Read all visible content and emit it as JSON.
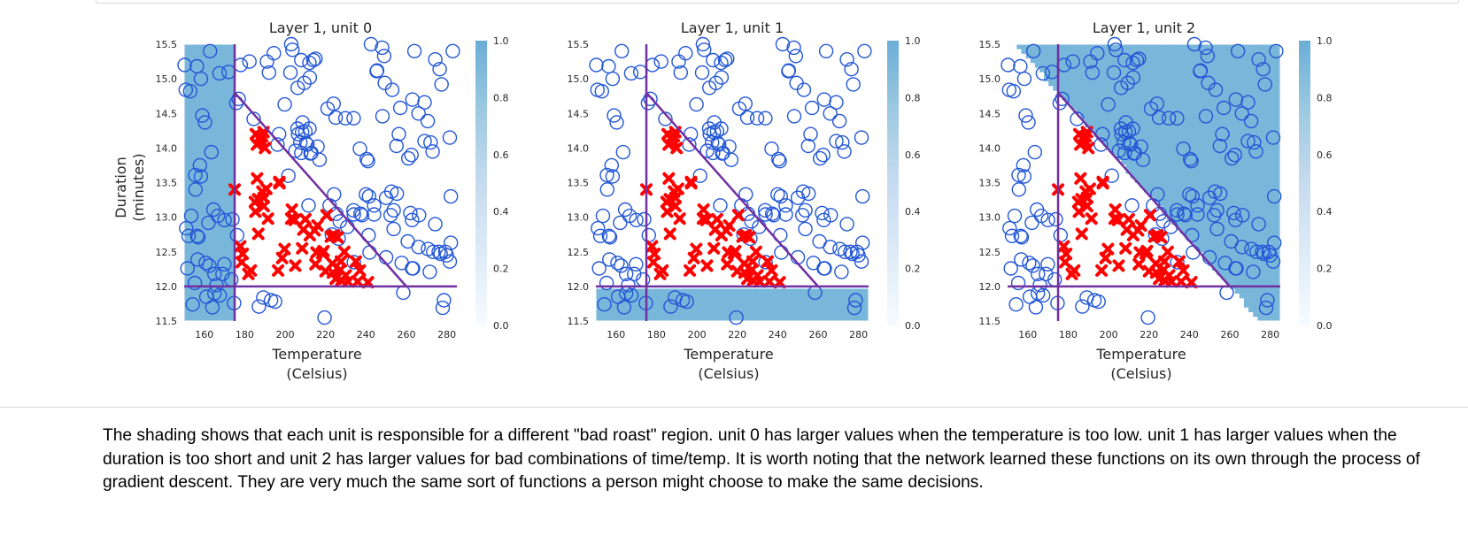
{
  "chart_data": [
    {
      "type": "heatmap",
      "title": "Layer 1, unit 0",
      "xlabel": [
        "Temperature",
        "(Celsius)"
      ],
      "ylabel": [
        "Duration",
        "(minutes)"
      ],
      "xlim": [
        150,
        285
      ],
      "ylim": [
        11.5,
        15.5
      ],
      "xticks": [
        160,
        180,
        200,
        220,
        240,
        260,
        280
      ],
      "yticks": [
        "11.5",
        "12.0",
        "12.5",
        "13.0",
        "13.5",
        "14.0",
        "14.5",
        "15.0",
        "15.5"
      ],
      "colorbar": {
        "range": [
          0,
          1
        ],
        "ticks": [
          "0.0",
          "0.2",
          "0.4",
          "0.6",
          "0.8",
          "1.0"
        ]
      },
      "shading": "high where temperature < 175",
      "grid": false
    },
    {
      "type": "heatmap",
      "title": "Layer 1, unit 1",
      "xlabel": [
        "Temperature",
        "(Celsius)"
      ],
      "ylabel": [],
      "xlim": [
        150,
        285
      ],
      "ylim": [
        11.5,
        15.5
      ],
      "xticks": [
        160,
        180,
        200,
        220,
        240,
        260,
        280
      ],
      "yticks": [
        "11.5",
        "12.0",
        "12.5",
        "13.0",
        "13.5",
        "14.0",
        "14.5",
        "15.0",
        "15.5"
      ],
      "colorbar": {
        "range": [
          0,
          1
        ],
        "ticks": [
          "0.0",
          "0.2",
          "0.4",
          "0.6",
          "0.8",
          "1.0"
        ]
      },
      "shading": "high where duration < 12",
      "grid": false
    },
    {
      "type": "heatmap",
      "title": "Layer 1, unit 2",
      "xlabel": [
        "Temperature",
        "(Celsius)"
      ],
      "ylabel": [],
      "xlim": [
        150,
        285
      ],
      "ylim": [
        11.5,
        15.5
      ],
      "xticks": [
        160,
        180,
        200,
        220,
        240,
        260,
        280
      ],
      "yticks": [
        "11.5",
        "12.0",
        "12.5",
        "13.0",
        "13.5",
        "14.0",
        "14.5",
        "15.0",
        "15.5"
      ],
      "colorbar": {
        "range": [
          0,
          1
        ],
        "ticks": [
          "0.0",
          "0.2",
          "0.4",
          "0.6",
          "0.8",
          "1.0"
        ]
      },
      "shading": "high above the line duration = 14.8 - (temperature - 175) * 3/85",
      "grid": false
    }
  ],
  "decision_lines": {
    "vertical_temperature": 175,
    "horizontal_duration": 12,
    "diagonal": [
      [
        175,
        14.8
      ],
      [
        260,
        12.0
      ]
    ]
  },
  "good_roasts": [
    [
      150.2,
      15.2
    ],
    [
      150.8,
      14.84
    ],
    [
      151.0,
      12.84
    ],
    [
      151.6,
      12.26
    ],
    [
      152.2,
      12.73
    ],
    [
      153.0,
      14.82
    ],
    [
      153.5,
      13.02
    ],
    [
      154.2,
      11.74
    ],
    [
      155.3,
      12.05
    ],
    [
      155.5,
      13.61
    ],
    [
      155.6,
      13.4
    ],
    [
      156.3,
      15.18
    ],
    [
      156.5,
      12.73
    ],
    [
      156.7,
      12.39
    ],
    [
      157.0,
      12.71
    ],
    [
      157.8,
      13.75
    ],
    [
      158.3,
      13.59
    ],
    [
      158.3,
      15.0
    ],
    [
      159.0,
      14.47
    ],
    [
      160.3,
      14.37
    ],
    [
      160.7,
      12.34
    ],
    [
      161.0,
      11.85
    ],
    [
      162.0,
      12.92
    ],
    [
      162.5,
      12.3
    ],
    [
      162.8,
      15.4
    ],
    [
      163.5,
      13.94
    ],
    [
      164.0,
      11.7
    ],
    [
      164.5,
      13.11
    ],
    [
      165.0,
      12.18
    ],
    [
      165.0,
      11.9
    ],
    [
      166.0,
      12.02
    ],
    [
      166.7,
      13.02
    ],
    [
      167.5,
      15.08
    ],
    [
      167.6,
      11.87
    ],
    [
      169.0,
      12.18
    ],
    [
      169.9,
      12.32
    ],
    [
      170.0,
      12.96
    ],
    [
      172.0,
      15.1
    ],
    [
      173.3,
      12.1
    ],
    [
      173.9,
      12.97
    ],
    [
      174.7,
      11.76
    ],
    [
      175.8,
      14.65
    ],
    [
      176.2,
      12.74
    ],
    [
      177.0,
      14.71
    ],
    [
      178.0,
      15.2
    ],
    [
      182.3,
      15.25
    ],
    [
      184.4,
      14.42
    ],
    [
      187.0,
      11.71
    ],
    [
      189.2,
      11.84
    ],
    [
      191.0,
      15.25
    ],
    [
      192.0,
      15.09
    ],
    [
      193.0,
      11.8
    ],
    [
      194.4,
      15.37
    ],
    [
      195.0,
      11.78
    ],
    [
      196.2,
      14.05
    ],
    [
      197.0,
      14.2
    ],
    [
      199.8,
      14.63
    ],
    [
      201.6,
      13.6
    ],
    [
      202.6,
      15.09
    ],
    [
      203.0,
      15.5
    ],
    [
      203.6,
      15.42
    ],
    [
      205.1,
      13.96
    ],
    [
      206.1,
      14.28
    ],
    [
      206.2,
      14.87
    ],
    [
      206.4,
      14.2
    ],
    [
      207.5,
      14.08
    ],
    [
      208.0,
      15.27
    ],
    [
      208.0,
      13.93
    ],
    [
      208.4,
      14.23
    ],
    [
      208.6,
      14.37
    ],
    [
      209.5,
      14.94
    ],
    [
      210.0,
      14.24
    ],
    [
      210.4,
      14.07
    ],
    [
      211.0,
      14.05
    ],
    [
      211.6,
      13.17
    ],
    [
      212.0,
      14.28
    ],
    [
      212.0,
      15.23
    ],
    [
      212.2,
      15.02
    ],
    [
      212.6,
      13.92
    ],
    [
      213.0,
      13.93
    ],
    [
      214.0,
      15.27
    ],
    [
      215.0,
      15.29
    ],
    [
      216.0,
      14.02
    ],
    [
      217.0,
      13.83
    ],
    [
      219.5,
      11.55
    ],
    [
      221.0,
      14.57
    ],
    [
      222.0,
      13.17
    ],
    [
      223.1,
      12.75
    ],
    [
      224.0,
      14.64
    ],
    [
      224.2,
      13.33
    ],
    [
      225.0,
      14.44
    ],
    [
      225.3,
      13.05
    ],
    [
      226.5,
      12.69
    ],
    [
      227.0,
      12.94
    ],
    [
      229.8,
      14.43
    ],
    [
      230.8,
      12.86
    ],
    [
      233.8,
      13.1
    ],
    [
      233.9,
      14.43
    ],
    [
      234.0,
      13.04
    ],
    [
      234.0,
      12.35
    ],
    [
      237.0,
      13.99
    ],
    [
      237.3,
      13.05
    ],
    [
      238.0,
      13.03
    ],
    [
      240.0,
      13.33
    ],
    [
      240.4,
      13.84
    ],
    [
      241.0,
      13.81
    ],
    [
      241.3,
      12.74
    ],
    [
      241.5,
      13.3
    ],
    [
      241.8,
      12.49
    ],
    [
      242.5,
      15.5
    ],
    [
      244.0,
      13.04
    ],
    [
      244.0,
      13.17
    ],
    [
      245.3,
      15.11
    ],
    [
      245.5,
      15.12
    ],
    [
      248.0,
      15.45
    ],
    [
      248.2,
      14.46
    ],
    [
      249.0,
      15.33
    ],
    [
      249.3,
      14.94
    ],
    [
      250.0,
      13.28
    ],
    [
      250.0,
      12.42
    ],
    [
      252.2,
      13.03
    ],
    [
      252.6,
      13.37
    ],
    [
      253.0,
      14.84
    ],
    [
      253.7,
      12.83
    ],
    [
      253.7,
      13.1
    ],
    [
      255.1,
      14.03
    ],
    [
      255.3,
      13.34
    ],
    [
      256.3,
      14.2
    ],
    [
      257.0,
      14.58
    ],
    [
      257.7,
      12.34
    ],
    [
      258.5,
      11.91
    ],
    [
      260.7,
      12.65
    ],
    [
      261.0,
      13.85
    ],
    [
      262.0,
      13.06
    ],
    [
      262.5,
      13.9
    ],
    [
      262.8,
      12.96
    ],
    [
      262.8,
      12.26
    ],
    [
      263.0,
      14.7
    ],
    [
      263.3,
      12.26
    ],
    [
      264.0,
      15.4
    ],
    [
      266.0,
      14.5
    ],
    [
      266.0,
      12.57
    ],
    [
      266.3,
      13.03
    ],
    [
      269.0,
      14.66
    ],
    [
      269.0,
      14.1
    ],
    [
      270.6,
      14.39
    ],
    [
      270.7,
      12.54
    ],
    [
      271.6,
      12.21
    ],
    [
      272.0,
      14.08
    ],
    [
      273.0,
      13.95
    ],
    [
      273.3,
      12.5
    ],
    [
      274.3,
      12.9
    ],
    [
      274.3,
      15.28
    ],
    [
      276.0,
      12.5
    ],
    [
      276.5,
      15.14
    ],
    [
      277.0,
      12.47
    ],
    [
      277.4,
      14.92
    ],
    [
      278.0,
      11.69
    ],
    [
      278.6,
      11.8
    ],
    [
      279.3,
      12.5
    ],
    [
      280.0,
      12.45
    ],
    [
      281.5,
      14.15
    ],
    [
      281.5,
      12.36
    ],
    [
      282.0,
      12.63
    ],
    [
      282.0,
      13.3
    ],
    [
      283.0,
      15.4
    ]
  ],
  "bad_roasts": [
    [
      175.0,
      13.4
    ],
    [
      177.8,
      12.58
    ],
    [
      178.5,
      12.35
    ],
    [
      179.0,
      12.47
    ],
    [
      181.8,
      12.18
    ],
    [
      183.0,
      12.23
    ],
    [
      185.0,
      13.22
    ],
    [
      185.3,
      13.08
    ],
    [
      185.5,
      14.2
    ],
    [
      186.0,
      14.05
    ],
    [
      186.1,
      13.56
    ],
    [
      186.6,
      13.26
    ],
    [
      186.7,
      12.76
    ],
    [
      187.5,
      14.16
    ],
    [
      188.0,
      14.11
    ],
    [
      188.6,
      14.17
    ],
    [
      188.7,
      13.37
    ],
    [
      189.3,
      14.23
    ],
    [
      189.4,
      13.28
    ],
    [
      189.4,
      13.16
    ],
    [
      190.0,
      14.0
    ],
    [
      190.7,
      13.41
    ],
    [
      191.5,
      12.98
    ],
    [
      196.5,
      12.23
    ],
    [
      197.1,
      13.51
    ],
    [
      197.2,
      13.49
    ],
    [
      198.5,
      12.41
    ],
    [
      199.7,
      12.54
    ],
    [
      203.0,
      12.98
    ],
    [
      203.3,
      13.11
    ],
    [
      204.7,
      12.96
    ],
    [
      205.0,
      12.3
    ],
    [
      208.4,
      12.55
    ],
    [
      209.0,
      12.82
    ],
    [
      210.0,
      12.97
    ],
    [
      212.2,
      12.74
    ],
    [
      214.6,
      12.81
    ],
    [
      215.0,
      12.32
    ],
    [
      215.5,
      12.49
    ],
    [
      216.0,
      12.88
    ],
    [
      218.3,
      12.48
    ],
    [
      219.0,
      12.51
    ],
    [
      220.0,
      12.22
    ],
    [
      220.5,
      13.03
    ],
    [
      222.6,
      12.72
    ],
    [
      223.4,
      12.33
    ],
    [
      223.6,
      12.2
    ],
    [
      224.2,
      12.74
    ],
    [
      225.0,
      12.11
    ],
    [
      225.9,
      12.71
    ],
    [
      227.3,
      12.24
    ],
    [
      227.6,
      12.36
    ],
    [
      227.8,
      12.09
    ],
    [
      229.3,
      12.5
    ],
    [
      230.0,
      12.16
    ],
    [
      231.1,
      12.07
    ],
    [
      235.0,
      12.36
    ],
    [
      235.9,
      12.07
    ],
    [
      237.0,
      12.23
    ],
    [
      241.0,
      12.06
    ]
  ],
  "caption": "The shading shows that each unit is responsible for a different \"bad roast\" region. unit 0 has larger values when the temperature is too low. unit 1 has larger values when the duration is too short and unit 2 has larger values for bad combinations of time/temp. It is worth noting that the network learned these functions on its own through the process of gradient descent. They are very much the same sort of functions a person might choose to make the same decisions.",
  "colors": {
    "good_marker": "#2357d6",
    "bad_marker": "#ff0000",
    "decision_line": "#7030a0",
    "shade_high": "#6aaed6",
    "shade_low": "#f7fbff"
  }
}
